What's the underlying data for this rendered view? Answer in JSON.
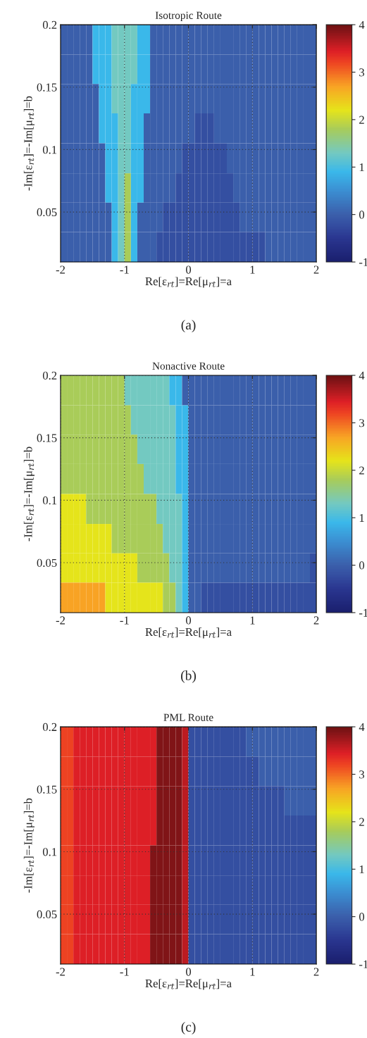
{
  "chart_data": [
    {
      "type": "heatmap",
      "title": "Isotropic Route",
      "xlabel": "Re[ε$_{rt}$]=Re[μ$_{rt}$]=a",
      "ylabel": "-Im[ε$_{rt}$]=-Im[μ$_{rt}$]=b",
      "annotations": [
        "(a)"
      ],
      "x": [
        -1.95,
        -1.85,
        -1.75,
        -1.65,
        -1.55,
        -1.45,
        -1.35,
        -1.25,
        -1.15,
        -1.05,
        -0.95,
        -0.85,
        -0.75,
        -0.65,
        -0.55,
        -0.45,
        -0.35,
        -0.25,
        -0.15,
        -0.05,
        0.05,
        0.15,
        0.25,
        0.35,
        0.45,
        0.55,
        0.65,
        0.75,
        0.85,
        0.95,
        1.05,
        1.15,
        1.25,
        1.35,
        1.45,
        1.55,
        1.65,
        1.75,
        1.85,
        1.95
      ],
      "y": [
        0.188,
        0.164,
        0.141,
        0.117,
        0.093,
        0.069,
        0.046,
        0.022
      ],
      "xlim": [
        -2,
        2
      ],
      "xticks": [
        -2,
        -1,
        0,
        1,
        2
      ],
      "ylim": [
        0.01,
        0.2
      ],
      "yticks": [
        0.05,
        0.1,
        0.15,
        0.2
      ],
      "clim": [
        -1,
        4
      ],
      "cticks": [
        -1,
        0,
        1,
        2,
        3,
        4
      ],
      "grid": true,
      "cells": [
        [
          0,
          0,
          0,
          0,
          0,
          0.9,
          0.9,
          0.9,
          1.3,
          1.3,
          1.3,
          1.3,
          0.9,
          0.9,
          0,
          0,
          0,
          0,
          0,
          0,
          0,
          0,
          0,
          0,
          0,
          0,
          0,
          0,
          0,
          0,
          0,
          0,
          0,
          0,
          0,
          0,
          0,
          0,
          0,
          0
        ],
        [
          0,
          0,
          0,
          0,
          0,
          0.9,
          0.9,
          0.9,
          1.3,
          1.3,
          1.3,
          1.3,
          0.9,
          0.9,
          0,
          0,
          0,
          0,
          0,
          0,
          0,
          0,
          0,
          0,
          0,
          0,
          0,
          0,
          0,
          0,
          0,
          0,
          0,
          0,
          0,
          0,
          0,
          0,
          0,
          0
        ],
        [
          0,
          0,
          0,
          0,
          0,
          0,
          0.9,
          0.9,
          1.3,
          1.3,
          1.3,
          0.9,
          0.9,
          0.9,
          0,
          0,
          0,
          0,
          0,
          0,
          0,
          0,
          0,
          0,
          0,
          0,
          0,
          0,
          0,
          0,
          0,
          0,
          0,
          0,
          0,
          0,
          0,
          0,
          0,
          0
        ],
        [
          0,
          0,
          0,
          0,
          0,
          0,
          0.9,
          0.9,
          0.9,
          1.3,
          1.3,
          0.9,
          0.9,
          0,
          0,
          0,
          0,
          0,
          0,
          0,
          0,
          -0.2,
          -0.2,
          -0.2,
          0,
          0,
          0,
          0,
          0,
          0,
          0,
          0,
          0,
          0,
          0,
          0,
          0,
          0,
          0,
          0
        ],
        [
          0,
          0,
          0,
          0,
          0,
          0,
          0,
          0.9,
          0.9,
          1.3,
          1.3,
          0.9,
          0.9,
          0,
          0,
          0,
          0,
          0,
          0,
          -0.2,
          -0.2,
          -0.2,
          -0.2,
          -0.2,
          -0.2,
          -0.2,
          0,
          0,
          0,
          0,
          0,
          0,
          0,
          0,
          0,
          0,
          0,
          0,
          0,
          0
        ],
        [
          0,
          0,
          0,
          0,
          0,
          0,
          0,
          0.9,
          0.9,
          1.3,
          1.8,
          0.9,
          0.9,
          0,
          0,
          0,
          0,
          0,
          -0.2,
          -0.2,
          -0.2,
          -0.2,
          -0.2,
          -0.2,
          -0.2,
          -0.2,
          -0.2,
          0,
          0,
          0,
          0,
          0,
          0,
          0,
          0,
          0,
          0,
          0,
          0,
          0
        ],
        [
          0,
          0,
          0,
          0,
          0,
          0,
          0,
          0,
          0.9,
          1.3,
          1.8,
          0.9,
          0,
          0,
          0,
          0,
          -0.2,
          -0.2,
          -0.2,
          -0.2,
          -0.2,
          -0.2,
          -0.2,
          -0.2,
          -0.2,
          -0.2,
          -0.2,
          -0.2,
          0,
          0,
          0,
          0,
          0,
          0,
          0,
          0,
          0,
          0,
          0,
          0
        ],
        [
          0,
          0,
          0,
          0,
          0,
          0,
          0,
          0,
          0.9,
          1.3,
          1.8,
          0.9,
          0,
          0,
          0,
          -0.2,
          -0.2,
          -0.2,
          -0.2,
          -0.2,
          -0.2,
          -0.2,
          -0.2,
          -0.2,
          -0.2,
          -0.2,
          -0.2,
          -0.2,
          -0.2,
          -0.2,
          -0.2,
          -0.2,
          0,
          0,
          0,
          0,
          0,
          0,
          0,
          0
        ]
      ]
    },
    {
      "type": "heatmap",
      "title": "Nonactive Route",
      "xlabel": "Re[ε$_{rt}$]=Re[μ$_{rt}$]=a",
      "ylabel": "-Im[ε$_{rt}$]=-Im[μ$_{rt}$]=b",
      "annotations": [
        "(b)"
      ],
      "x": [
        -1.95,
        -1.85,
        -1.75,
        -1.65,
        -1.55,
        -1.45,
        -1.35,
        -1.25,
        -1.15,
        -1.05,
        -0.95,
        -0.85,
        -0.75,
        -0.65,
        -0.55,
        -0.45,
        -0.35,
        -0.25,
        -0.15,
        -0.05,
        0.05,
        0.15,
        0.25,
        0.35,
        0.45,
        0.55,
        0.65,
        0.75,
        0.85,
        0.95,
        1.05,
        1.15,
        1.25,
        1.35,
        1.45,
        1.55,
        1.65,
        1.75,
        1.85,
        1.95
      ],
      "y": [
        0.188,
        0.164,
        0.141,
        0.117,
        0.093,
        0.069,
        0.046,
        0.022
      ],
      "xlim": [
        -2,
        2
      ],
      "xticks": [
        -2,
        -1,
        0,
        1,
        2
      ],
      "ylim": [
        0.01,
        0.2
      ],
      "yticks": [
        0.05,
        0.1,
        0.15,
        0.2
      ],
      "clim": [
        -1,
        4
      ],
      "cticks": [
        -1,
        0,
        1,
        2,
        3,
        4
      ],
      "grid": true,
      "cells": [
        [
          1.8,
          1.8,
          1.8,
          1.8,
          1.8,
          1.8,
          1.8,
          1.8,
          1.8,
          1.8,
          1.3,
          1.3,
          1.3,
          1.3,
          1.3,
          1.3,
          1.3,
          0.9,
          0.9,
          0,
          0,
          0,
          0,
          0,
          0,
          0,
          0,
          0,
          0,
          0,
          0,
          0,
          0,
          0,
          0,
          0,
          0,
          0,
          0,
          0
        ],
        [
          1.8,
          1.8,
          1.8,
          1.8,
          1.8,
          1.8,
          1.8,
          1.8,
          1.8,
          1.8,
          1.8,
          1.3,
          1.3,
          1.3,
          1.3,
          1.3,
          1.3,
          1.3,
          0.9,
          0.9,
          0,
          0,
          0,
          0,
          0,
          0,
          0,
          0,
          0,
          0,
          0,
          0,
          0,
          0,
          0,
          0,
          0,
          0,
          0,
          0
        ],
        [
          1.8,
          1.8,
          1.8,
          1.8,
          1.8,
          1.8,
          1.8,
          1.8,
          1.8,
          1.8,
          1.8,
          1.8,
          1.3,
          1.3,
          1.3,
          1.3,
          1.3,
          1.3,
          0.9,
          0.9,
          0,
          0,
          0,
          0,
          0,
          0,
          0,
          0,
          0,
          0,
          0,
          0,
          0,
          0,
          0,
          0,
          0,
          0,
          0,
          0
        ],
        [
          1.8,
          1.8,
          1.8,
          1.8,
          1.8,
          1.8,
          1.8,
          1.8,
          1.8,
          1.8,
          1.8,
          1.8,
          1.8,
          1.3,
          1.3,
          1.3,
          1.3,
          1.3,
          0.9,
          0.9,
          0,
          0,
          0,
          0,
          0,
          0,
          0,
          0,
          0,
          0,
          0,
          0,
          0,
          0,
          0,
          0,
          0,
          0,
          0,
          0
        ],
        [
          2.2,
          2.2,
          2.2,
          2.2,
          1.8,
          1.8,
          1.8,
          1.8,
          1.8,
          1.8,
          1.8,
          1.8,
          1.8,
          1.8,
          1.8,
          1.3,
          1.3,
          1.3,
          1.3,
          0.9,
          0,
          0,
          0,
          0,
          0,
          0,
          0,
          0,
          0,
          0,
          0,
          0,
          0,
          0,
          0,
          0,
          0,
          0,
          0,
          0
        ],
        [
          2.2,
          2.2,
          2.2,
          2.2,
          2.2,
          2.2,
          2.2,
          2.2,
          1.8,
          1.8,
          1.8,
          1.8,
          1.8,
          1.8,
          1.8,
          1.8,
          1.3,
          1.3,
          1.3,
          0.9,
          0,
          0,
          0,
          0,
          0,
          0,
          0,
          0,
          0,
          0,
          0,
          0,
          0,
          0,
          0,
          0,
          0,
          0,
          0,
          0
        ],
        [
          2.2,
          2.2,
          2.2,
          2.2,
          2.2,
          2.2,
          2.2,
          2.2,
          2.2,
          2.2,
          2.2,
          2.2,
          1.8,
          1.8,
          1.8,
          1.8,
          1.8,
          1.3,
          1.3,
          0.9,
          0,
          0,
          0,
          0,
          0,
          0,
          0,
          0,
          0,
          0,
          0,
          0,
          0,
          0,
          0,
          0,
          0,
          0,
          0,
          -0.2
        ],
        [
          2.7,
          2.7,
          2.7,
          2.7,
          2.7,
          2.7,
          2.7,
          2.2,
          2.2,
          2.2,
          2.2,
          2.2,
          2.2,
          2.2,
          2.2,
          2.2,
          1.8,
          1.8,
          1.3,
          0.9,
          0,
          0,
          -0.2,
          -0.2,
          -0.2,
          -0.2,
          -0.2,
          -0.2,
          -0.2,
          -0.2,
          -0.2,
          -0.2,
          -0.2,
          -0.2,
          -0.2,
          -0.2,
          -0.2,
          -0.2,
          -0.2,
          -0.2
        ]
      ]
    },
    {
      "type": "heatmap",
      "title": "PML Route",
      "xlabel": "Re[ε$_{rt}$]=Re[μ$_{rt}$]=a",
      "ylabel": "-Im[ε$_{rt}$]=-Im[μ$_{rt}$]=b",
      "annotations": [
        "(c)"
      ],
      "x": [
        -1.95,
        -1.85,
        -1.75,
        -1.65,
        -1.55,
        -1.45,
        -1.35,
        -1.25,
        -1.15,
        -1.05,
        -0.95,
        -0.85,
        -0.75,
        -0.65,
        -0.55,
        -0.45,
        -0.35,
        -0.25,
        -0.15,
        -0.05,
        0.05,
        0.15,
        0.25,
        0.35,
        0.45,
        0.55,
        0.65,
        0.75,
        0.85,
        0.95,
        1.05,
        1.15,
        1.25,
        1.35,
        1.45,
        1.55,
        1.65,
        1.75,
        1.85,
        1.95
      ],
      "y": [
        0.188,
        0.164,
        0.141,
        0.117,
        0.093,
        0.069,
        0.046,
        0.022
      ],
      "xlim": [
        -2,
        2
      ],
      "xticks": [
        -2,
        -1,
        0,
        1,
        2
      ],
      "ylim": [
        0.01,
        0.2
      ],
      "yticks": [
        0.05,
        0.1,
        0.15,
        0.2
      ],
      "clim": [
        -1,
        4
      ],
      "cticks": [
        -1,
        0,
        1,
        2,
        3,
        4
      ],
      "grid": true,
      "cells": [
        [
          3.2,
          3.2,
          3.45,
          3.45,
          3.45,
          3.45,
          3.45,
          3.45,
          3.45,
          3.45,
          3.45,
          3.45,
          3.45,
          3.45,
          3.45,
          3.9,
          3.9,
          3.9,
          3.9,
          3.6,
          -0.2,
          -0.2,
          -0.2,
          -0.2,
          -0.2,
          -0.2,
          -0.2,
          -0.2,
          -0.2,
          0,
          0,
          0,
          0,
          0,
          0,
          0,
          0,
          0,
          0,
          0
        ],
        [
          3.2,
          3.2,
          3.45,
          3.45,
          3.45,
          3.45,
          3.45,
          3.45,
          3.45,
          3.45,
          3.45,
          3.45,
          3.45,
          3.45,
          3.45,
          3.9,
          3.9,
          3.9,
          3.9,
          3.6,
          -0.2,
          -0.2,
          -0.2,
          -0.2,
          -0.2,
          -0.2,
          -0.2,
          -0.2,
          -0.2,
          -0.2,
          -0.2,
          0,
          0,
          0,
          0,
          0,
          0,
          0,
          0,
          0
        ],
        [
          3.2,
          3.2,
          3.45,
          3.45,
          3.45,
          3.45,
          3.45,
          3.45,
          3.45,
          3.45,
          3.45,
          3.45,
          3.45,
          3.45,
          3.45,
          3.9,
          3.9,
          3.9,
          3.9,
          3.6,
          -0.2,
          -0.2,
          -0.2,
          -0.2,
          -0.2,
          -0.2,
          -0.2,
          -0.2,
          -0.2,
          -0.2,
          -0.2,
          -0.2,
          -0.2,
          -0.2,
          -0.2,
          0,
          0,
          0,
          0,
          0
        ],
        [
          3.2,
          3.2,
          3.45,
          3.45,
          3.45,
          3.45,
          3.45,
          3.45,
          3.45,
          3.45,
          3.45,
          3.45,
          3.45,
          3.45,
          3.45,
          3.9,
          3.9,
          3.9,
          3.9,
          3.6,
          -0.2,
          -0.2,
          -0.2,
          -0.2,
          -0.2,
          -0.2,
          -0.2,
          -0.2,
          -0.2,
          -0.2,
          -0.2,
          -0.2,
          -0.2,
          -0.2,
          -0.2,
          -0.2,
          -0.2,
          -0.2,
          -0.2,
          -0.2
        ],
        [
          3.2,
          3.2,
          3.45,
          3.45,
          3.45,
          3.45,
          3.45,
          3.45,
          3.45,
          3.45,
          3.45,
          3.45,
          3.45,
          3.45,
          3.9,
          3.9,
          3.9,
          3.9,
          3.9,
          3.6,
          -0.2,
          -0.2,
          -0.2,
          -0.2,
          -0.2,
          -0.2,
          -0.2,
          -0.2,
          -0.2,
          -0.2,
          -0.2,
          -0.2,
          -0.2,
          -0.2,
          -0.2,
          -0.2,
          -0.2,
          -0.2,
          -0.2,
          -0.2
        ],
        [
          3.2,
          3.2,
          3.45,
          3.45,
          3.45,
          3.45,
          3.45,
          3.45,
          3.45,
          3.45,
          3.45,
          3.45,
          3.45,
          3.45,
          3.9,
          3.9,
          3.9,
          3.9,
          3.9,
          3.6,
          -0.2,
          -0.2,
          -0.2,
          -0.2,
          -0.2,
          -0.2,
          -0.2,
          -0.2,
          -0.2,
          -0.2,
          -0.2,
          -0.2,
          -0.2,
          -0.2,
          -0.2,
          -0.2,
          -0.2,
          -0.2,
          -0.2,
          -0.2
        ],
        [
          3.2,
          3.2,
          3.45,
          3.45,
          3.45,
          3.45,
          3.45,
          3.45,
          3.45,
          3.45,
          3.45,
          3.45,
          3.45,
          3.45,
          3.9,
          3.9,
          3.9,
          3.9,
          3.9,
          3.6,
          -0.2,
          -0.2,
          -0.2,
          -0.2,
          -0.2,
          -0.2,
          -0.2,
          -0.2,
          -0.2,
          -0.2,
          -0.2,
          -0.2,
          -0.2,
          -0.2,
          -0.2,
          -0.2,
          -0.2,
          -0.2,
          -0.2,
          -0.2
        ],
        [
          3.2,
          3.2,
          3.45,
          3.45,
          3.45,
          3.45,
          3.45,
          3.45,
          3.45,
          3.45,
          3.45,
          3.45,
          3.45,
          3.45,
          3.9,
          3.9,
          3.9,
          3.9,
          3.9,
          3.6,
          -0.2,
          -0.2,
          -0.2,
          -0.2,
          -0.2,
          -0.2,
          -0.2,
          -0.2,
          -0.2,
          -0.2,
          -0.2,
          -0.2,
          -0.2,
          -0.2,
          -0.2,
          -0.2,
          -0.2,
          -0.2,
          -0.2,
          -0.2
        ]
      ]
    }
  ]
}
